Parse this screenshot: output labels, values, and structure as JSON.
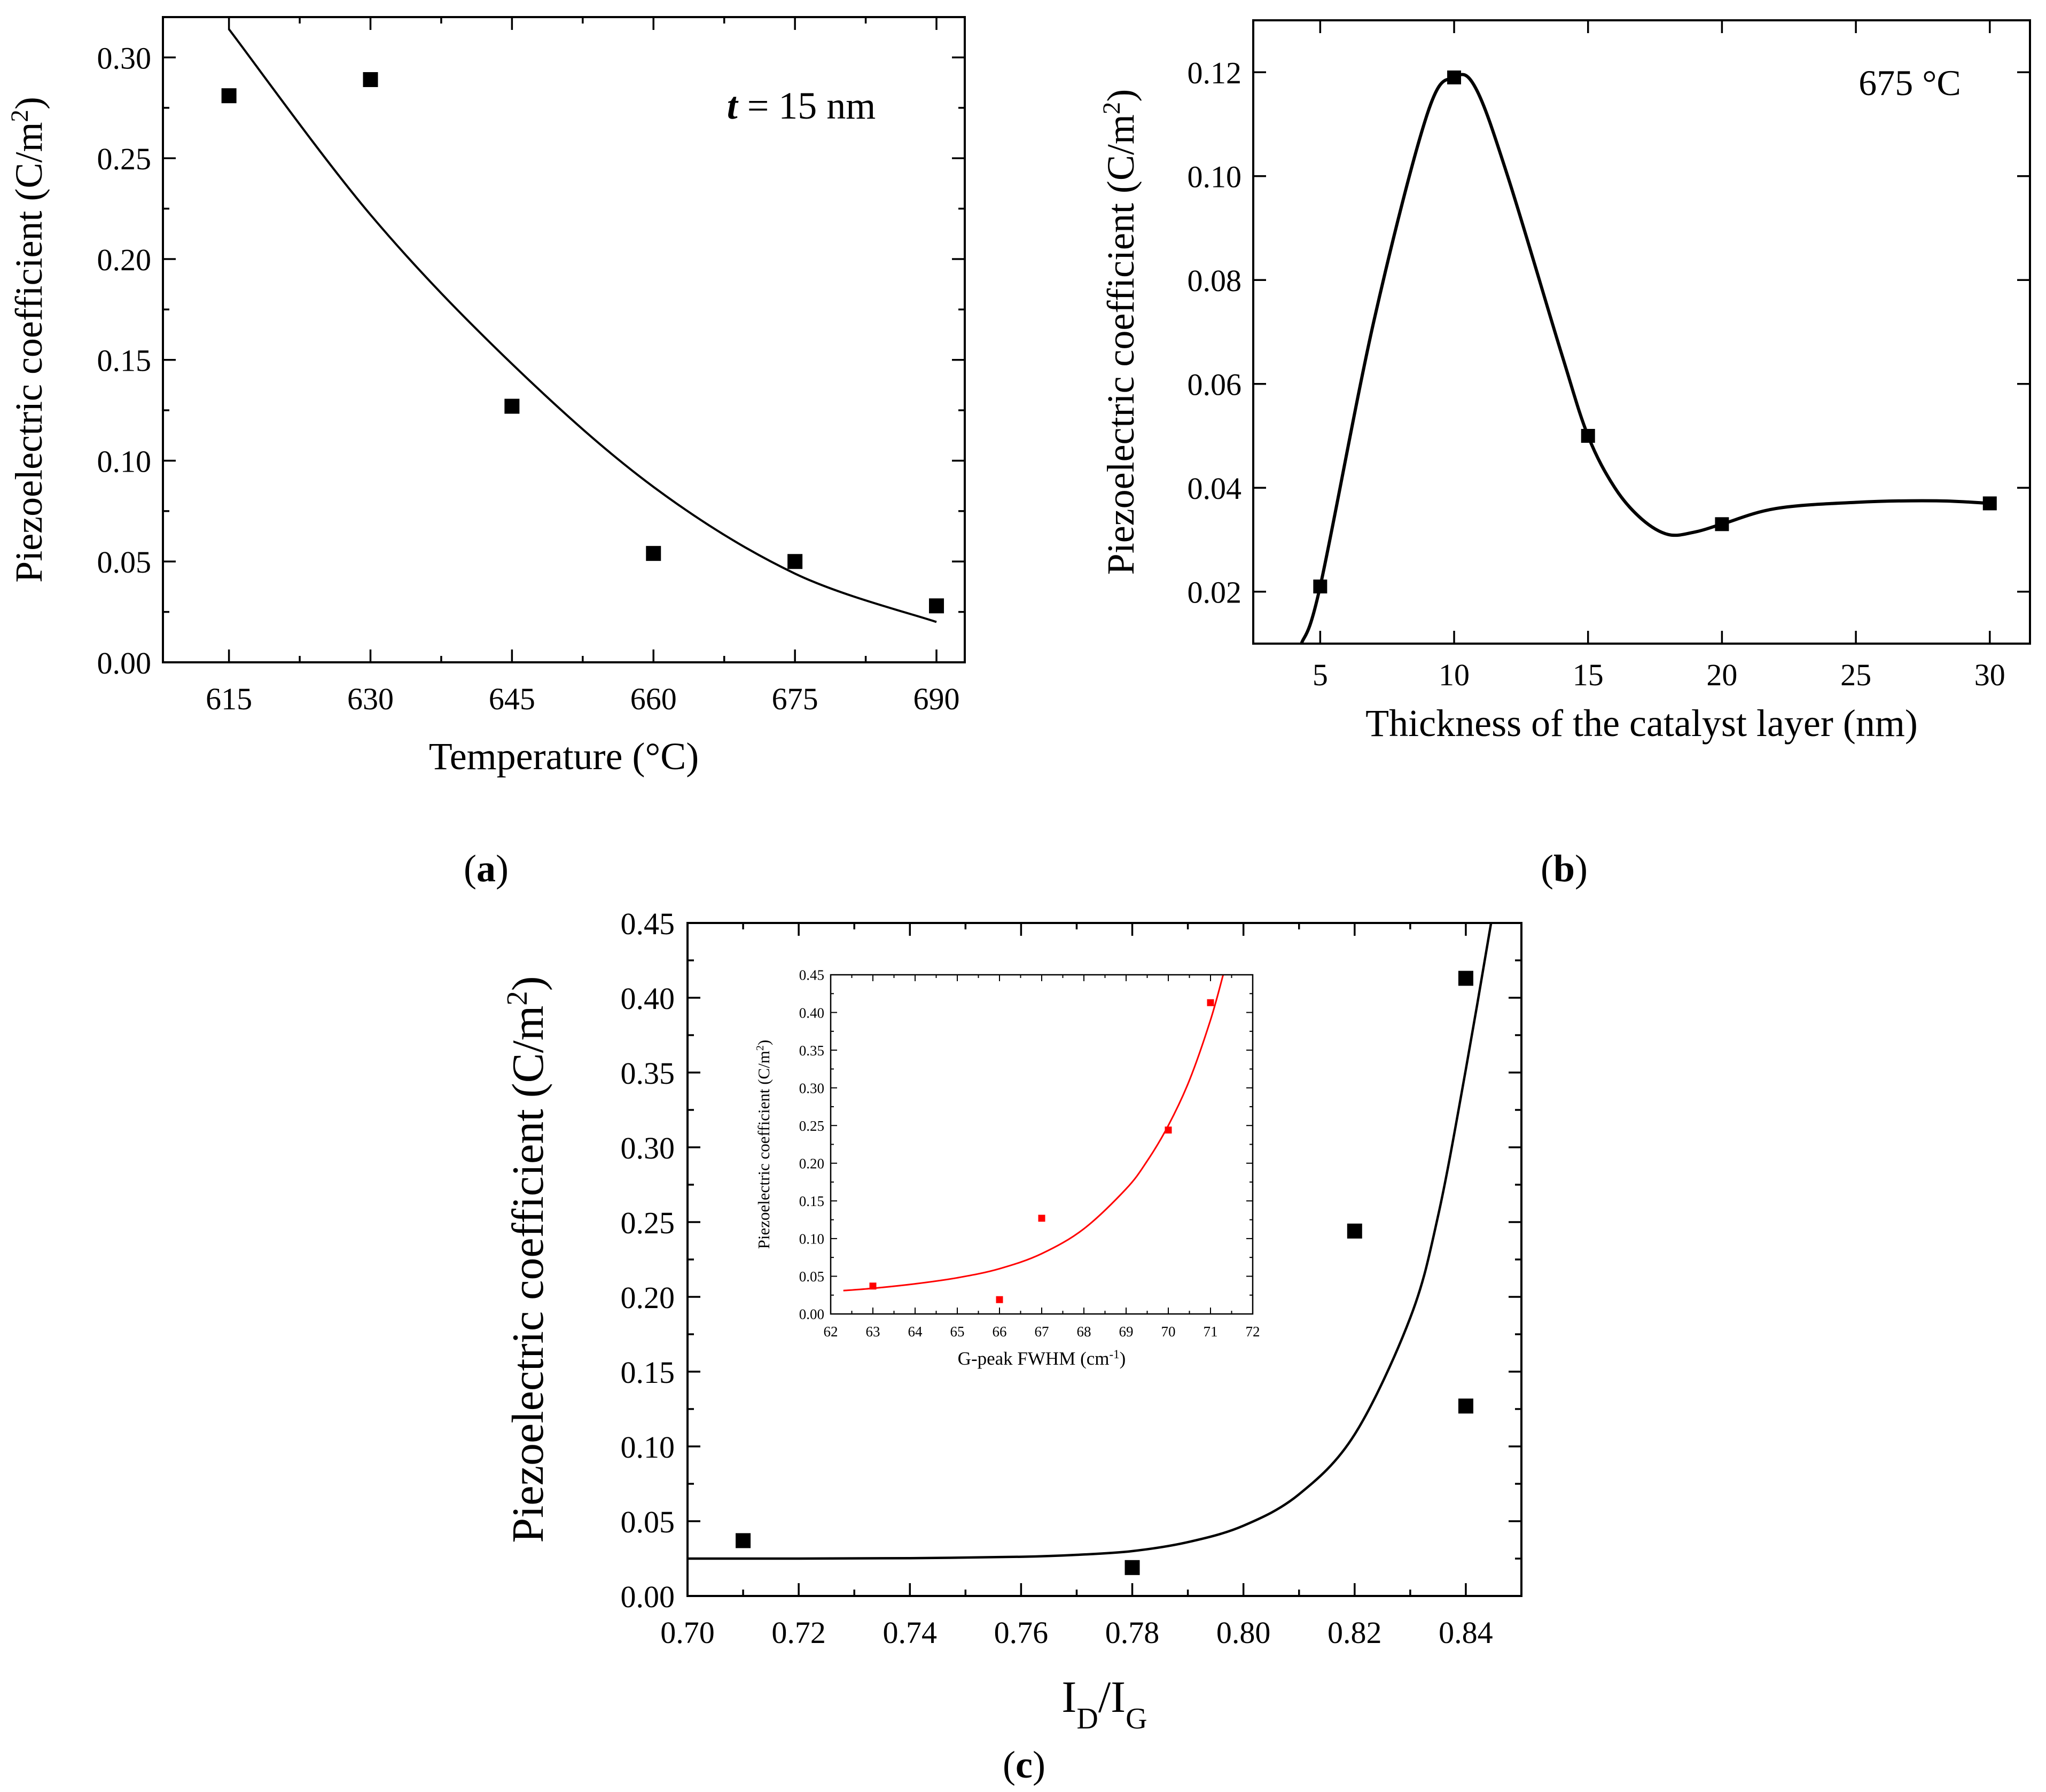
{
  "panel_labels": {
    "a": "a",
    "b": "b",
    "c": "c"
  },
  "colors": {
    "axis": "#000000",
    "fit_main": "#000000",
    "marker_main": "#000000",
    "inset_fit": "#ff0000",
    "inset_marker": "#ff0000"
  },
  "chart_data": [
    {
      "id": "a",
      "type": "scatter",
      "title": "",
      "xlabel": "Temperature (°C)",
      "ylabel": "Piezoelectric coefficient (C/m²)",
      "annotation": {
        "italic": "t",
        "rest": " = 15 nm"
      },
      "xlim": [
        608,
        693
      ],
      "ylim": [
        0,
        0.32
      ],
      "xticks": [
        615,
        630,
        645,
        660,
        675,
        690
      ],
      "xtick_labels": [
        "615",
        "630",
        "645",
        "660",
        "675",
        "690"
      ],
      "yticks": [
        0,
        0.05,
        0.1,
        0.15,
        0.2,
        0.25,
        0.3
      ],
      "ytick_labels": [
        "0.00",
        "0.05",
        "0.10",
        "0.15",
        "0.20",
        "0.25",
        "0.30"
      ],
      "series": [
        {
          "name": "measured",
          "x": [
            615,
            630,
            645,
            660,
            675,
            690
          ],
          "y": [
            0.281,
            0.289,
            0.127,
            0.054,
            0.05,
            0.028
          ]
        },
        {
          "name": "fit",
          "x": [
            615,
            630,
            645,
            660,
            675,
            690
          ],
          "y": [
            0.314,
            0.222,
            0.148,
            0.087,
            0.044,
            0.02
          ]
        }
      ],
      "grid": false
    },
    {
      "id": "b",
      "type": "scatter",
      "title": "",
      "xlabel": "Thickness of the catalyst layer (nm)",
      "ylabel": "Piezoelectric coefficient (C/m²)",
      "annotation": {
        "italic": "",
        "rest": "675 °C"
      },
      "xlim": [
        2.5,
        31.5
      ],
      "ylim": [
        0.01,
        0.13
      ],
      "xticks": [
        5,
        10,
        15,
        20,
        25,
        30
      ],
      "xtick_labels": [
        "5",
        "10",
        "15",
        "20",
        "25",
        "30"
      ],
      "yticks": [
        0.02,
        0.04,
        0.06,
        0.08,
        0.1,
        0.12
      ],
      "ytick_labels": [
        "0.02",
        "0.04",
        "0.06",
        "0.08",
        "0.10",
        "0.12"
      ],
      "series": [
        {
          "name": "measured",
          "x": [
            5,
            10,
            15,
            20,
            30
          ],
          "y": [
            0.021,
            0.119,
            0.05,
            0.033,
            0.037
          ]
        },
        {
          "name": "fit",
          "x": [
            4.3,
            5,
            7,
            9,
            10,
            10.8,
            12,
            14,
            15,
            16,
            17,
            18,
            19,
            20,
            22,
            25,
            28,
            30
          ],
          "y": [
            0.01,
            0.021,
            0.072,
            0.112,
            0.119,
            0.117,
            0.1,
            0.066,
            0.05,
            0.04,
            0.034,
            0.031,
            0.0315,
            0.033,
            0.036,
            0.0372,
            0.0375,
            0.037
          ]
        }
      ],
      "grid": false
    },
    {
      "id": "c",
      "type": "scatter",
      "title": "",
      "xlabel": {
        "main": "I",
        "sub1": "D",
        "slash": "/I",
        "sub2": "G"
      },
      "ylabel": "Piezoelectric coefficient (C/m²)",
      "xlim": [
        0.7,
        0.85
      ],
      "ylim": [
        0,
        0.45
      ],
      "xticks": [
        0.7,
        0.72,
        0.74,
        0.76,
        0.78,
        0.8,
        0.82,
        0.84
      ],
      "xtick_labels": [
        "0.70",
        "0.72",
        "0.74",
        "0.76",
        "0.78",
        "0.80",
        "0.82",
        "0.84"
      ],
      "yticks": [
        0,
        0.05,
        0.1,
        0.15,
        0.2,
        0.25,
        0.3,
        0.35,
        0.4,
        0.45
      ],
      "ytick_labels": [
        "0.00",
        "0.05",
        "0.10",
        "0.15",
        "0.20",
        "0.25",
        "0.30",
        "0.35",
        "0.40",
        "0.45"
      ],
      "series": [
        {
          "name": "measured",
          "x": [
            0.71,
            0.78,
            0.82,
            0.84,
            0.84
          ],
          "y": [
            0.037,
            0.019,
            0.244,
            0.127,
            0.413
          ]
        },
        {
          "name": "fit",
          "x": [
            0.7,
            0.72,
            0.74,
            0.76,
            0.77,
            0.78,
            0.79,
            0.8,
            0.81,
            0.82,
            0.83,
            0.835,
            0.84,
            0.845
          ],
          "y": [
            0.025,
            0.025,
            0.0253,
            0.0262,
            0.0275,
            0.03,
            0.036,
            0.047,
            0.068,
            0.108,
            0.186,
            0.254,
            0.352,
            0.46
          ]
        }
      ],
      "grid": false,
      "inset": {
        "type": "scatter",
        "xlabel": {
          "main": "G-peak FWHM (cm",
          "sup": "-1",
          "tail": ")"
        },
        "ylabel": "Piezoelectric coefficient (C/m²)",
        "xlim": [
          62,
          72
        ],
        "ylim": [
          0,
          0.45
        ],
        "xticks": [
          62,
          63,
          64,
          65,
          66,
          67,
          68,
          69,
          70,
          71,
          72
        ],
        "xtick_labels": [
          "62",
          "63",
          "64",
          "65",
          "66",
          "67",
          "68",
          "69",
          "70",
          "71",
          "72"
        ],
        "yticks": [
          0,
          0.05,
          0.1,
          0.15,
          0.2,
          0.25,
          0.3,
          0.35,
          0.4,
          0.45
        ],
        "ytick_labels": [
          "0.00",
          "0.05",
          "0.10",
          "0.15",
          "0.20",
          "0.25",
          "0.30",
          "0.35",
          "0.40",
          "0.45"
        ],
        "series": [
          {
            "name": "measured",
            "x": [
              63,
              66,
              67,
              70,
              71
            ],
            "y": [
              0.037,
              0.019,
              0.127,
              0.244,
              0.413
            ]
          },
          {
            "name": "fit",
            "x": [
              62.3,
              63,
              64,
              65,
              66,
              67,
              68,
              69,
              69.5,
              70,
              70.5,
              71,
              71.3
            ],
            "y": [
              0.031,
              0.034,
              0.04,
              0.048,
              0.06,
              0.08,
              0.113,
              0.166,
              0.203,
              0.25,
              0.31,
              0.39,
              0.45
            ]
          }
        ]
      }
    }
  ]
}
